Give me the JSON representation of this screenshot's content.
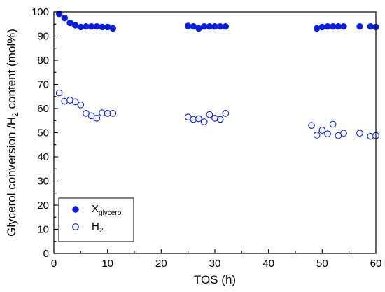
{
  "chart_data": {
    "type": "scatter",
    "xlabel": "TOS (h)",
    "ylabel": {
      "prefix": "Glycerol conversion /H",
      "sub": "2",
      "suffix": " content (mol%)"
    },
    "xlim": [
      0,
      60
    ],
    "ylim": [
      0,
      100
    ],
    "x_ticks": [
      0,
      10,
      20,
      30,
      40,
      50,
      60
    ],
    "y_ticks": [
      0,
      10,
      20,
      30,
      40,
      50,
      60,
      70,
      80,
      90,
      100
    ],
    "grid": false,
    "legend_position": "bottom-left",
    "series": [
      {
        "name": "X",
        "name_sub": "glycerol",
        "marker": "filled-circle",
        "color": "#0a1ee0",
        "points": [
          [
            1,
            99.2
          ],
          [
            2,
            97.5
          ],
          [
            3,
            95.5
          ],
          [
            4,
            94.5
          ],
          [
            5,
            93.8
          ],
          [
            6,
            94.0
          ],
          [
            7,
            94.0
          ],
          [
            8,
            94.0
          ],
          [
            9,
            93.8
          ],
          [
            10,
            93.8
          ],
          [
            11,
            93.2
          ],
          [
            25,
            94.2
          ],
          [
            26,
            94.0
          ],
          [
            27,
            93.2
          ],
          [
            28,
            94.0
          ],
          [
            29,
            94.0
          ],
          [
            30,
            94.0
          ],
          [
            31,
            94.0
          ],
          [
            32,
            94.0
          ],
          [
            49,
            93.2
          ],
          [
            50,
            93.8
          ],
          [
            51,
            94.0
          ],
          [
            52,
            94.0
          ],
          [
            53,
            94.0
          ],
          [
            54,
            94.0
          ],
          [
            57,
            94.0
          ],
          [
            59,
            94.0
          ],
          [
            60,
            93.8
          ]
        ]
      },
      {
        "name": "H",
        "name_sub": "2",
        "marker": "open-circle",
        "color": "#0a1ee0",
        "points": [
          [
            1,
            66.5
          ],
          [
            2,
            63.0
          ],
          [
            3,
            63.5
          ],
          [
            4,
            62.8
          ],
          [
            5,
            61.5
          ],
          [
            6,
            58.0
          ],
          [
            7,
            57.0
          ],
          [
            8,
            56.0
          ],
          [
            9,
            58.2
          ],
          [
            10,
            58.0
          ],
          [
            11,
            58.0
          ],
          [
            25,
            56.5
          ],
          [
            26,
            55.5
          ],
          [
            27,
            55.8
          ],
          [
            28,
            54.5
          ],
          [
            29,
            57.5
          ],
          [
            30,
            56.0
          ],
          [
            31,
            55.5
          ],
          [
            32,
            58.0
          ],
          [
            48,
            53.0
          ],
          [
            49,
            49.0
          ],
          [
            50,
            51.0
          ],
          [
            51,
            49.5
          ],
          [
            52,
            53.5
          ],
          [
            53,
            48.8
          ],
          [
            54,
            49.8
          ],
          [
            57,
            49.8
          ],
          [
            59,
            48.5
          ],
          [
            60,
            48.8
          ]
        ]
      }
    ]
  }
}
